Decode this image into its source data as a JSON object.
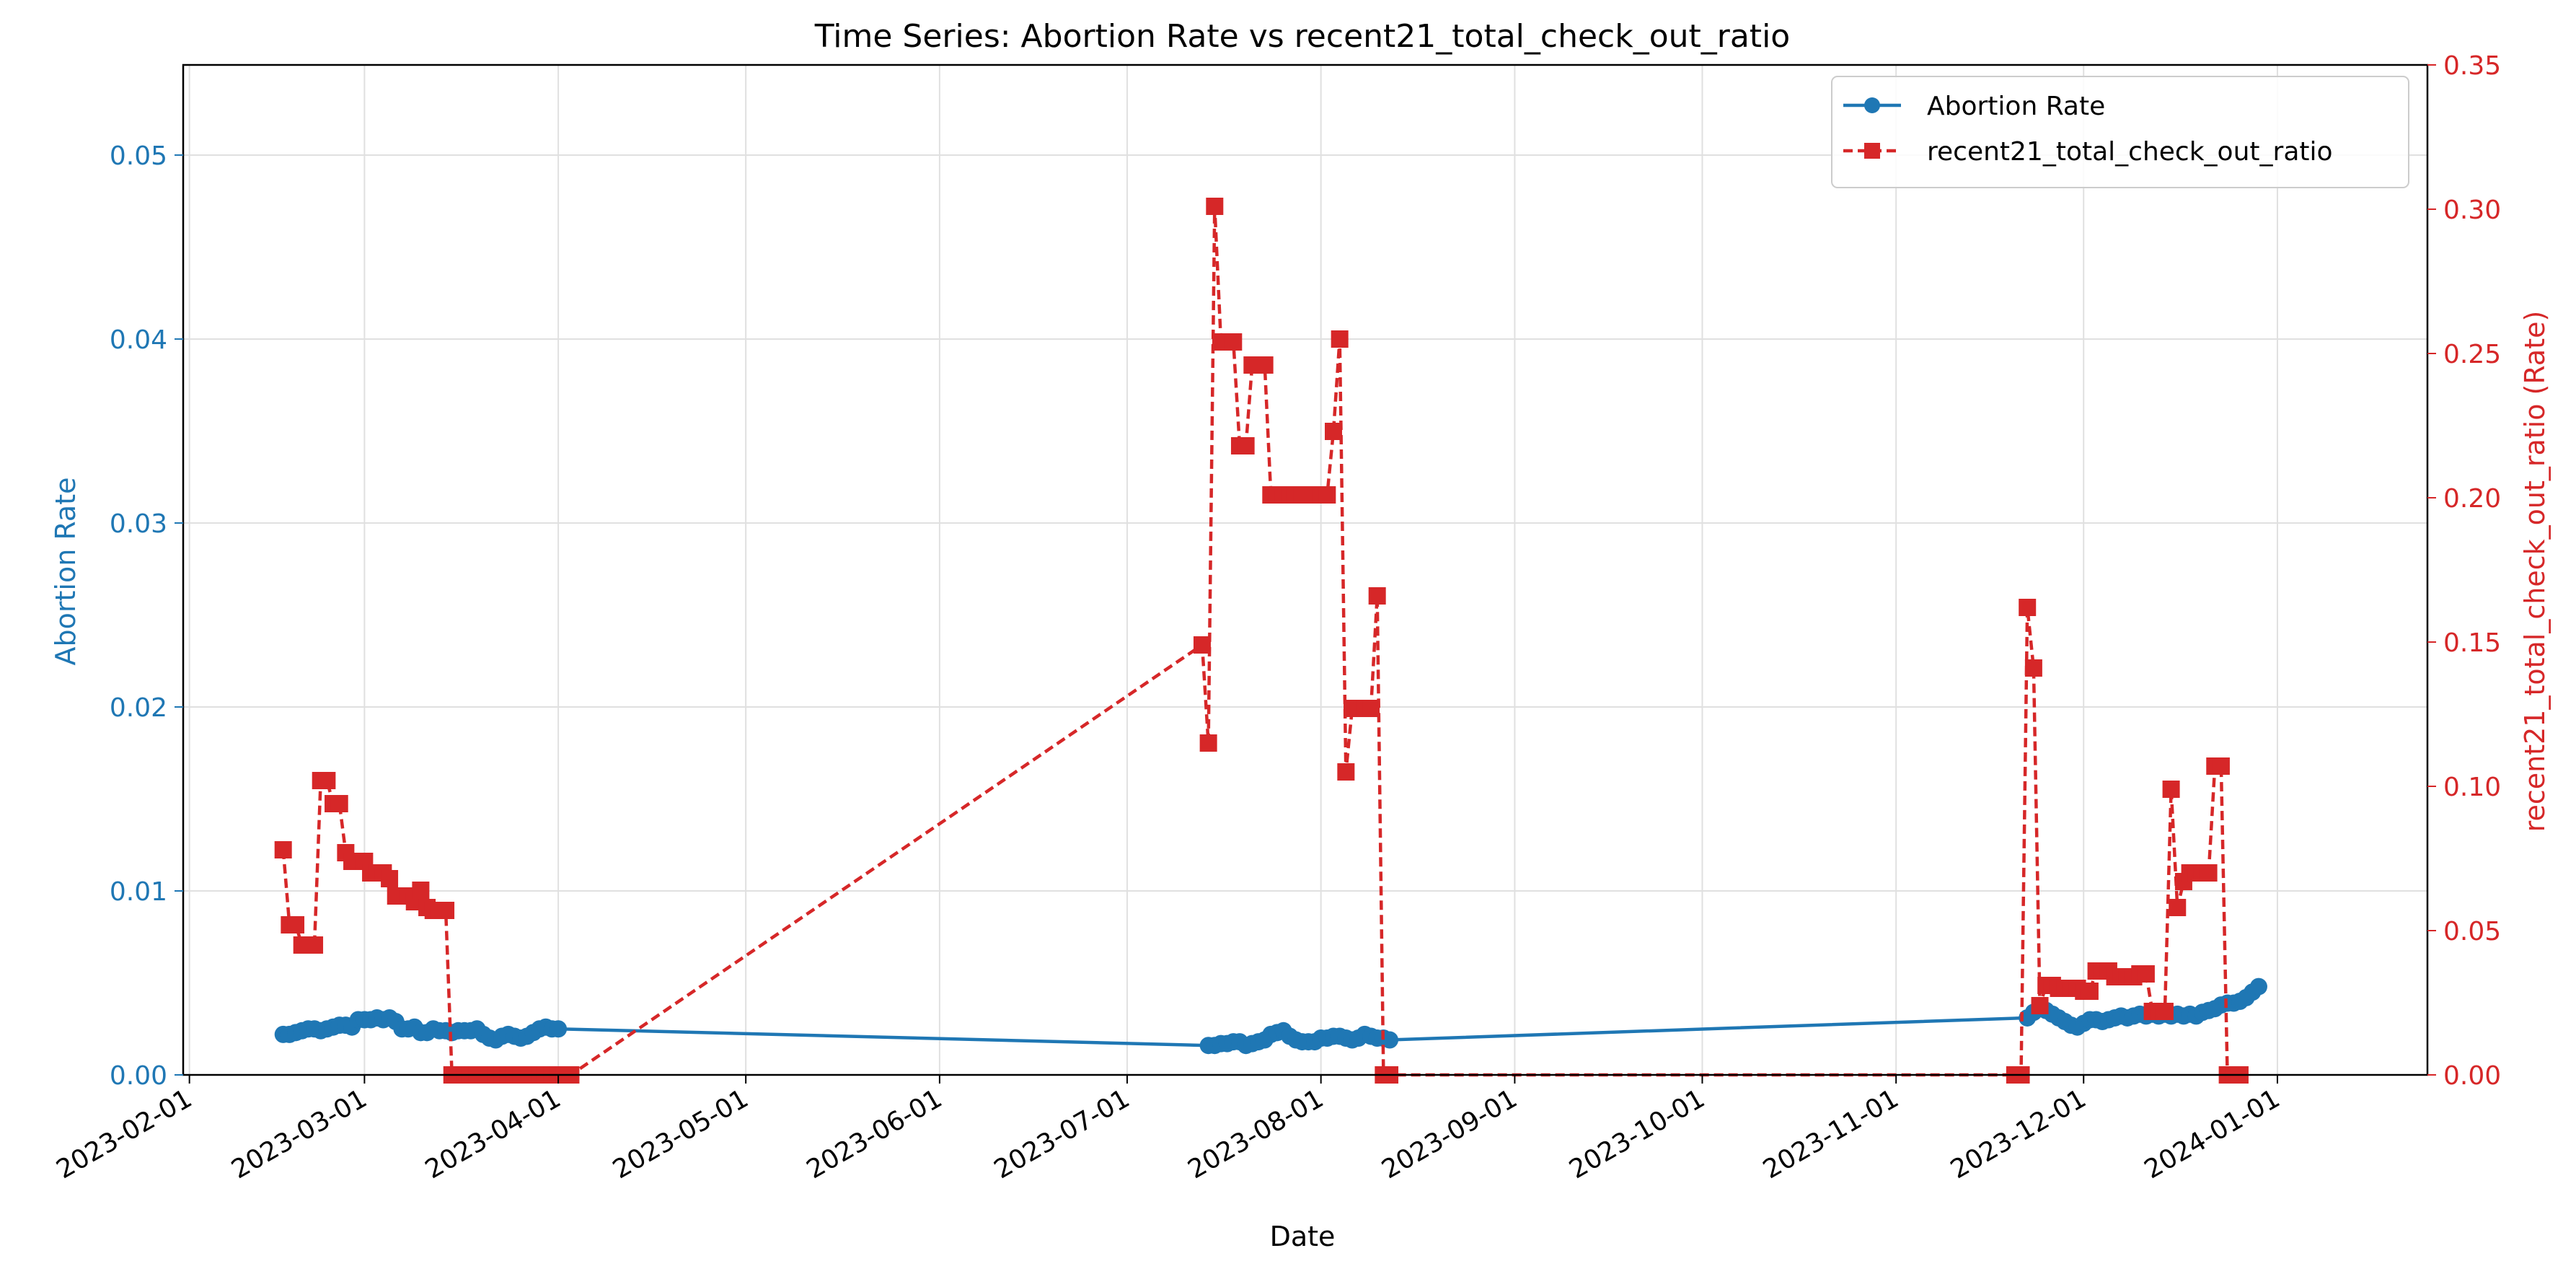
{
  "chart_data": {
    "type": "line",
    "title": "Time Series: Abortion Rate vs recent21_total_check_out_ratio",
    "xlabel": "Date",
    "ylabel_left": "Abortion Rate",
    "ylabel_right": "recent21_total_check_out_ratio (Rate)",
    "xlim": [
      "2023-01-31",
      "2024-01-25"
    ],
    "ylim_left": [
      0,
      0.0549
    ],
    "ylim_right": [
      0,
      0.35
    ],
    "x_ticks": [
      "2023-02-01",
      "2023-03-01",
      "2023-04-01",
      "2023-05-01",
      "2023-06-01",
      "2023-07-01",
      "2023-08-01",
      "2023-09-01",
      "2023-10-01",
      "2023-11-01",
      "2023-12-01",
      "2024-01-01"
    ],
    "y_ticks_left": [
      "0.00",
      "0.01",
      "0.02",
      "0.03",
      "0.04",
      "0.05"
    ],
    "y_ticks_right": [
      "0.00",
      "0.05",
      "0.10",
      "0.15",
      "0.20",
      "0.25",
      "0.30",
      "0.35"
    ],
    "grid": true,
    "legend_position": "top-right",
    "colors": {
      "left_axis": "#1f77b4",
      "right_axis": "#d62728"
    },
    "series": [
      {
        "name": "Abortion Rate",
        "axis": "left",
        "marker": "circle",
        "line_style": "solid",
        "color": "#1f77b4",
        "points": [
          [
            "2023-02-16",
            0.0022
          ],
          [
            "2023-02-17",
            0.0022
          ],
          [
            "2023-02-18",
            0.0023
          ],
          [
            "2023-02-19",
            0.0024
          ],
          [
            "2023-02-20",
            0.0025
          ],
          [
            "2023-02-21",
            0.0025
          ],
          [
            "2023-02-22",
            0.0024
          ],
          [
            "2023-02-23",
            0.0025
          ],
          [
            "2023-02-24",
            0.0026
          ],
          [
            "2023-02-25",
            0.0027
          ],
          [
            "2023-02-26",
            0.0027
          ],
          [
            "2023-02-27",
            0.0026
          ],
          [
            "2023-02-28",
            0.003
          ],
          [
            "2023-03-01",
            0.003
          ],
          [
            "2023-03-02",
            0.003
          ],
          [
            "2023-03-03",
            0.0031
          ],
          [
            "2023-03-04",
            0.003
          ],
          [
            "2023-03-05",
            0.0031
          ],
          [
            "2023-03-06",
            0.0029
          ],
          [
            "2023-03-07",
            0.0025
          ],
          [
            "2023-03-08",
            0.0025
          ],
          [
            "2023-03-09",
            0.0026
          ],
          [
            "2023-03-10",
            0.0023
          ],
          [
            "2023-03-11",
            0.0023
          ],
          [
            "2023-03-12",
            0.0025
          ],
          [
            "2023-03-13",
            0.0024
          ],
          [
            "2023-03-14",
            0.0024
          ],
          [
            "2023-03-15",
            0.0023
          ],
          [
            "2023-03-16",
            0.0024
          ],
          [
            "2023-03-17",
            0.0024
          ],
          [
            "2023-03-18",
            0.0024
          ],
          [
            "2023-03-19",
            0.0025
          ],
          [
            "2023-03-20",
            0.0022
          ],
          [
            "2023-03-21",
            0.002
          ],
          [
            "2023-03-22",
            0.0019
          ],
          [
            "2023-03-23",
            0.0021
          ],
          [
            "2023-03-24",
            0.0022
          ],
          [
            "2023-03-25",
            0.0021
          ],
          [
            "2023-03-26",
            0.002
          ],
          [
            "2023-03-27",
            0.0021
          ],
          [
            "2023-03-28",
            0.0023
          ],
          [
            "2023-03-29",
            0.0025
          ],
          [
            "2023-03-30",
            0.0026
          ],
          [
            "2023-03-31",
            0.0025
          ],
          [
            "2023-04-01",
            0.0025
          ],
          [
            "2023-07-14",
            0.0016
          ],
          [
            "2023-07-15",
            0.0016
          ],
          [
            "2023-07-16",
            0.0017
          ],
          [
            "2023-07-17",
            0.0017
          ],
          [
            "2023-07-18",
            0.0018
          ],
          [
            "2023-07-19",
            0.0018
          ],
          [
            "2023-07-20",
            0.0016
          ],
          [
            "2023-07-21",
            0.0017
          ],
          [
            "2023-07-22",
            0.0018
          ],
          [
            "2023-07-23",
            0.0019
          ],
          [
            "2023-07-24",
            0.0022
          ],
          [
            "2023-07-25",
            0.0023
          ],
          [
            "2023-07-26",
            0.0024
          ],
          [
            "2023-07-27",
            0.0021
          ],
          [
            "2023-07-28",
            0.0019
          ],
          [
            "2023-07-29",
            0.0018
          ],
          [
            "2023-07-30",
            0.0018
          ],
          [
            "2023-07-31",
            0.0018
          ],
          [
            "2023-08-01",
            0.002
          ],
          [
            "2023-08-02",
            0.002
          ],
          [
            "2023-08-03",
            0.0021
          ],
          [
            "2023-08-04",
            0.0021
          ],
          [
            "2023-08-05",
            0.002
          ],
          [
            "2023-08-06",
            0.0019
          ],
          [
            "2023-08-07",
            0.002
          ],
          [
            "2023-08-08",
            0.0022
          ],
          [
            "2023-08-09",
            0.0021
          ],
          [
            "2023-08-10",
            0.002
          ],
          [
            "2023-08-11",
            0.002
          ],
          [
            "2023-08-12",
            0.0019
          ],
          [
            "2023-11-22",
            0.0031
          ],
          [
            "2023-11-23",
            0.0034
          ],
          [
            "2023-11-24",
            0.0037
          ],
          [
            "2023-11-25",
            0.0035
          ],
          [
            "2023-11-26",
            0.0033
          ],
          [
            "2023-11-27",
            0.0031
          ],
          [
            "2023-11-28",
            0.0029
          ],
          [
            "2023-11-29",
            0.0027
          ],
          [
            "2023-11-30",
            0.0026
          ],
          [
            "2023-12-01",
            0.0028
          ],
          [
            "2023-12-02",
            0.003
          ],
          [
            "2023-12-03",
            0.003
          ],
          [
            "2023-12-04",
            0.0029
          ],
          [
            "2023-12-05",
            0.003
          ],
          [
            "2023-12-06",
            0.0031
          ],
          [
            "2023-12-07",
            0.0032
          ],
          [
            "2023-12-08",
            0.0031
          ],
          [
            "2023-12-09",
            0.0032
          ],
          [
            "2023-12-10",
            0.0033
          ],
          [
            "2023-12-11",
            0.0032
          ],
          [
            "2023-12-12",
            0.0033
          ],
          [
            "2023-12-13",
            0.0032
          ],
          [
            "2023-12-14",
            0.0033
          ],
          [
            "2023-12-15",
            0.0032
          ],
          [
            "2023-12-16",
            0.0033
          ],
          [
            "2023-12-17",
            0.0032
          ],
          [
            "2023-12-18",
            0.0033
          ],
          [
            "2023-12-19",
            0.0032
          ],
          [
            "2023-12-20",
            0.0034
          ],
          [
            "2023-12-21",
            0.0035
          ],
          [
            "2023-12-22",
            0.0036
          ],
          [
            "2023-12-23",
            0.0038
          ],
          [
            "2023-12-24",
            0.0039
          ],
          [
            "2023-12-25",
            0.0039
          ],
          [
            "2023-12-26",
            0.004
          ],
          [
            "2023-12-27",
            0.0042
          ],
          [
            "2023-12-28",
            0.0045
          ],
          [
            "2023-12-29",
            0.0048
          ]
        ]
      },
      {
        "name": "recent21_total_check_out_ratio",
        "axis": "right",
        "marker": "square",
        "line_style": "dashed",
        "color": "#d62728",
        "points": [
          [
            "2023-02-16",
            0.078
          ],
          [
            "2023-02-17",
            0.052
          ],
          [
            "2023-02-18",
            0.052
          ],
          [
            "2023-02-19",
            0.045
          ],
          [
            "2023-02-20",
            0.045
          ],
          [
            "2023-02-21",
            0.045
          ],
          [
            "2023-02-22",
            0.102
          ],
          [
            "2023-02-23",
            0.102
          ],
          [
            "2023-02-24",
            0.094
          ],
          [
            "2023-02-25",
            0.094
          ],
          [
            "2023-02-26",
            0.077
          ],
          [
            "2023-02-27",
            0.074
          ],
          [
            "2023-02-28",
            0.074
          ],
          [
            "2023-03-01",
            0.074
          ],
          [
            "2023-03-02",
            0.07
          ],
          [
            "2023-03-03",
            0.07
          ],
          [
            "2023-03-04",
            0.07
          ],
          [
            "2023-03-05",
            0.068
          ],
          [
            "2023-03-06",
            0.062
          ],
          [
            "2023-03-07",
            0.062
          ],
          [
            "2023-03-08",
            0.062
          ],
          [
            "2023-03-09",
            0.06
          ],
          [
            "2023-03-10",
            0.064
          ],
          [
            "2023-03-11",
            0.058
          ],
          [
            "2023-03-12",
            0.057
          ],
          [
            "2023-03-13",
            0.057
          ],
          [
            "2023-03-14",
            0.057
          ],
          [
            "2023-03-15",
            0.0
          ],
          [
            "2023-03-16",
            0.0
          ],
          [
            "2023-03-17",
            0.0
          ],
          [
            "2023-03-18",
            0.0
          ],
          [
            "2023-03-19",
            0.0
          ],
          [
            "2023-03-20",
            0.0
          ],
          [
            "2023-03-21",
            0.0
          ],
          [
            "2023-03-22",
            0.0
          ],
          [
            "2023-03-23",
            0.0
          ],
          [
            "2023-03-24",
            0.0
          ],
          [
            "2023-03-25",
            0.0
          ],
          [
            "2023-03-26",
            0.0
          ],
          [
            "2023-03-27",
            0.0
          ],
          [
            "2023-03-28",
            0.0
          ],
          [
            "2023-03-29",
            0.0
          ],
          [
            "2023-03-30",
            0.0
          ],
          [
            "2023-03-31",
            0.0
          ],
          [
            "2023-04-01",
            0.0
          ],
          [
            "2023-04-02",
            0.0
          ],
          [
            "2023-04-03",
            0.0
          ],
          [
            "2023-07-13",
            0.149
          ],
          [
            "2023-07-14",
            0.115
          ],
          [
            "2023-07-15",
            0.301
          ],
          [
            "2023-07-16",
            0.254
          ],
          [
            "2023-07-17",
            0.254
          ],
          [
            "2023-07-18",
            0.254
          ],
          [
            "2023-07-19",
            0.218
          ],
          [
            "2023-07-20",
            0.218
          ],
          [
            "2023-07-21",
            0.246
          ],
          [
            "2023-07-22",
            0.246
          ],
          [
            "2023-07-23",
            0.246
          ],
          [
            "2023-07-24",
            0.201
          ],
          [
            "2023-07-25",
            0.201
          ],
          [
            "2023-07-26",
            0.201
          ],
          [
            "2023-07-27",
            0.201
          ],
          [
            "2023-07-28",
            0.201
          ],
          [
            "2023-07-29",
            0.201
          ],
          [
            "2023-07-30",
            0.201
          ],
          [
            "2023-07-31",
            0.201
          ],
          [
            "2023-08-01",
            0.201
          ],
          [
            "2023-08-02",
            0.201
          ],
          [
            "2023-08-03",
            0.223
          ],
          [
            "2023-08-04",
            0.255
          ],
          [
            "2023-08-05",
            0.105
          ],
          [
            "2023-08-06",
            0.127
          ],
          [
            "2023-08-07",
            0.127
          ],
          [
            "2023-08-08",
            0.127
          ],
          [
            "2023-08-09",
            0.127
          ],
          [
            "2023-08-10",
            0.166
          ],
          [
            "2023-08-11",
            0.0
          ],
          [
            "2023-08-12",
            0.0
          ],
          [
            "2023-11-20",
            0.0
          ],
          [
            "2023-11-21",
            0.0
          ],
          [
            "2023-11-22",
            0.162
          ],
          [
            "2023-11-23",
            0.141
          ],
          [
            "2023-11-24",
            0.024
          ],
          [
            "2023-11-25",
            0.031
          ],
          [
            "2023-11-26",
            0.031
          ],
          [
            "2023-11-27",
            0.03
          ],
          [
            "2023-11-28",
            0.03
          ],
          [
            "2023-11-29",
            0.03
          ],
          [
            "2023-11-30",
            0.03
          ],
          [
            "2023-12-01",
            0.029
          ],
          [
            "2023-12-02",
            0.029
          ],
          [
            "2023-12-03",
            0.036
          ],
          [
            "2023-12-04",
            0.036
          ],
          [
            "2023-12-05",
            0.036
          ],
          [
            "2023-12-06",
            0.034
          ],
          [
            "2023-12-07",
            0.034
          ],
          [
            "2023-12-08",
            0.034
          ],
          [
            "2023-12-09",
            0.034
          ],
          [
            "2023-12-10",
            0.035
          ],
          [
            "2023-12-11",
            0.035
          ],
          [
            "2023-12-12",
            0.022
          ],
          [
            "2023-12-13",
            0.022
          ],
          [
            "2023-12-14",
            0.022
          ],
          [
            "2023-12-15",
            0.099
          ],
          [
            "2023-12-16",
            0.058
          ],
          [
            "2023-12-17",
            0.067
          ],
          [
            "2023-12-18",
            0.07
          ],
          [
            "2023-12-19",
            0.07
          ],
          [
            "2023-12-20",
            0.07
          ],
          [
            "2023-12-21",
            0.07
          ],
          [
            "2023-12-22",
            0.107
          ],
          [
            "2023-12-23",
            0.107
          ],
          [
            "2023-12-24",
            0.0
          ],
          [
            "2023-12-25",
            0.0
          ],
          [
            "2023-12-26",
            0.0
          ]
        ]
      }
    ]
  }
}
